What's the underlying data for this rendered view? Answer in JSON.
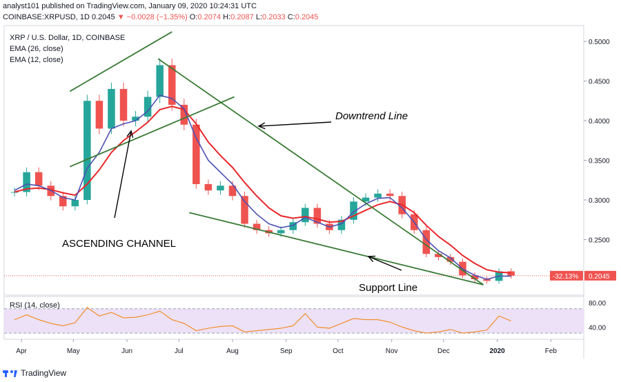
{
  "header": {
    "line1": "analyst101 published on TradingView.com, January 09, 2020 10:24:31 UTC",
    "symbol": "COINBASE:XRPUSD, 1D",
    "last": "0.2045",
    "arrow": "▼",
    "change": "−0.0028 (−1.35%)",
    "o_label": "O:",
    "o_value": "0.2074",
    "h_label": "H:",
    "h_value": "0.2087",
    "l_label": "L:",
    "l_value": "0.2033",
    "c_label": "C:",
    "c_value": "0.2045"
  },
  "legend": {
    "title": "XRP / U.S. Dollar, 1D, COINBASE",
    "ema26": "EMA (26, close)",
    "ema12": "EMA (12, close)"
  },
  "annotations": {
    "channel": "ASCENDING CHANNEL",
    "downtrend": "Downtrend Line",
    "support": "Support Line"
  },
  "price_axis": {
    "ticks": [
      "0.5000",
      "0.4500",
      "0.4000",
      "0.3500",
      "0.3000",
      "0.2500"
    ],
    "change_badge": "-32.13%",
    "last_badge": "0.2045"
  },
  "rsi": {
    "label": "RSI (14, close)",
    "ticks": [
      "80.00",
      "40.00"
    ]
  },
  "time_axis": [
    "Apr",
    "May",
    "Jun",
    "Jul",
    "Aug",
    "Sep",
    "Oct",
    "Nov",
    "Dec",
    "2020",
    "Feb"
  ],
  "footer": {
    "brand": "TradingView"
  },
  "colors": {
    "up": "#26a69a",
    "down": "#ef5350",
    "ema26": "#e8262a",
    "ema12": "#4b4fb2",
    "trendline": "#3a7a35",
    "rsi": "#f57c00",
    "rsi_band": "#ece1f6"
  },
  "chart_data": {
    "type": "candlestick",
    "title": "XRP / U.S. Dollar, 1D, COINBASE",
    "ylim": [
      0.18,
      0.52
    ],
    "rsi_ylim": [
      20,
      90
    ],
    "rsi_bands": [
      30,
      70
    ],
    "x": [
      "2020-03-28",
      "2020-04-04",
      "2020-04-11",
      "2020-04-18",
      "2020-04-25",
      "2020-05-02",
      "2020-05-09",
      "2020-05-16",
      "2020-05-23",
      "2020-05-30",
      "2020-06-06",
      "2020-06-13",
      "2020-06-20",
      "2020-06-27",
      "2020-07-04",
      "2020-07-11",
      "2020-07-18",
      "2020-07-25",
      "2020-08-01",
      "2020-08-08",
      "2020-08-15",
      "2020-08-22",
      "2020-08-29",
      "2020-09-05",
      "2020-09-12",
      "2020-09-19",
      "2020-09-26",
      "2020-10-03",
      "2020-10-10",
      "2020-10-17",
      "2020-10-24",
      "2020-10-31",
      "2020-11-07",
      "2020-11-14",
      "2020-11-21",
      "2020-11-28",
      "2020-12-05",
      "2020-12-12",
      "2020-12-19",
      "2020-12-26",
      "2021-01-02",
      "2021-01-09"
    ],
    "close": [
      0.31,
      0.335,
      0.318,
      0.305,
      0.292,
      0.3,
      0.425,
      0.39,
      0.44,
      0.4,
      0.405,
      0.43,
      0.47,
      0.42,
      0.395,
      0.32,
      0.312,
      0.318,
      0.305,
      0.27,
      0.262,
      0.258,
      0.262,
      0.272,
      0.29,
      0.27,
      0.262,
      0.275,
      0.298,
      0.303,
      0.308,
      0.305,
      0.282,
      0.262,
      0.232,
      0.228,
      0.222,
      0.205,
      0.2,
      0.198,
      0.21,
      0.2045
    ],
    "ema12": [
      0.312,
      0.32,
      0.318,
      0.312,
      0.303,
      0.3,
      0.34,
      0.36,
      0.39,
      0.396,
      0.4,
      0.412,
      0.432,
      0.428,
      0.415,
      0.378,
      0.35,
      0.335,
      0.32,
      0.298,
      0.282,
      0.27,
      0.265,
      0.268,
      0.278,
      0.272,
      0.266,
      0.27,
      0.285,
      0.295,
      0.302,
      0.303,
      0.29,
      0.272,
      0.25,
      0.236,
      0.227,
      0.213,
      0.205,
      0.2,
      0.204,
      0.204
    ],
    "ema26": [
      0.31,
      0.314,
      0.315,
      0.313,
      0.309,
      0.306,
      0.32,
      0.338,
      0.36,
      0.375,
      0.386,
      0.398,
      0.414,
      0.418,
      0.414,
      0.396,
      0.373,
      0.356,
      0.341,
      0.322,
      0.305,
      0.29,
      0.28,
      0.277,
      0.279,
      0.276,
      0.272,
      0.273,
      0.28,
      0.287,
      0.294,
      0.298,
      0.294,
      0.284,
      0.268,
      0.254,
      0.243,
      0.23,
      0.22,
      0.212,
      0.209,
      0.208
    ],
    "rsi": [
      52,
      60,
      52,
      46,
      42,
      47,
      72,
      58,
      64,
      55,
      56,
      60,
      66,
      52,
      46,
      34,
      38,
      41,
      42,
      32,
      34,
      36,
      38,
      42,
      62,
      40,
      38,
      46,
      54,
      52,
      52,
      48,
      40,
      34,
      30,
      32,
      36,
      30,
      32,
      35,
      58,
      50
    ],
    "trendlines": [
      {
        "name": "channel-upper",
        "from": [
          "2020-04-29",
          0.437
        ],
        "to": [
          "2020-06-27",
          0.512
        ]
      },
      {
        "name": "channel-lower",
        "from": [
          "2020-04-29",
          0.342
        ],
        "to": [
          "2020-08-02",
          0.43
        ]
      },
      {
        "name": "downtrend",
        "from": [
          "2020-06-19",
          0.478
        ],
        "to": [
          "2020-12-24",
          0.193
        ]
      },
      {
        "name": "support",
        "from": [
          "2020-07-07",
          0.284
        ],
        "to": [
          "2020-12-24",
          0.193
        ]
      }
    ]
  }
}
